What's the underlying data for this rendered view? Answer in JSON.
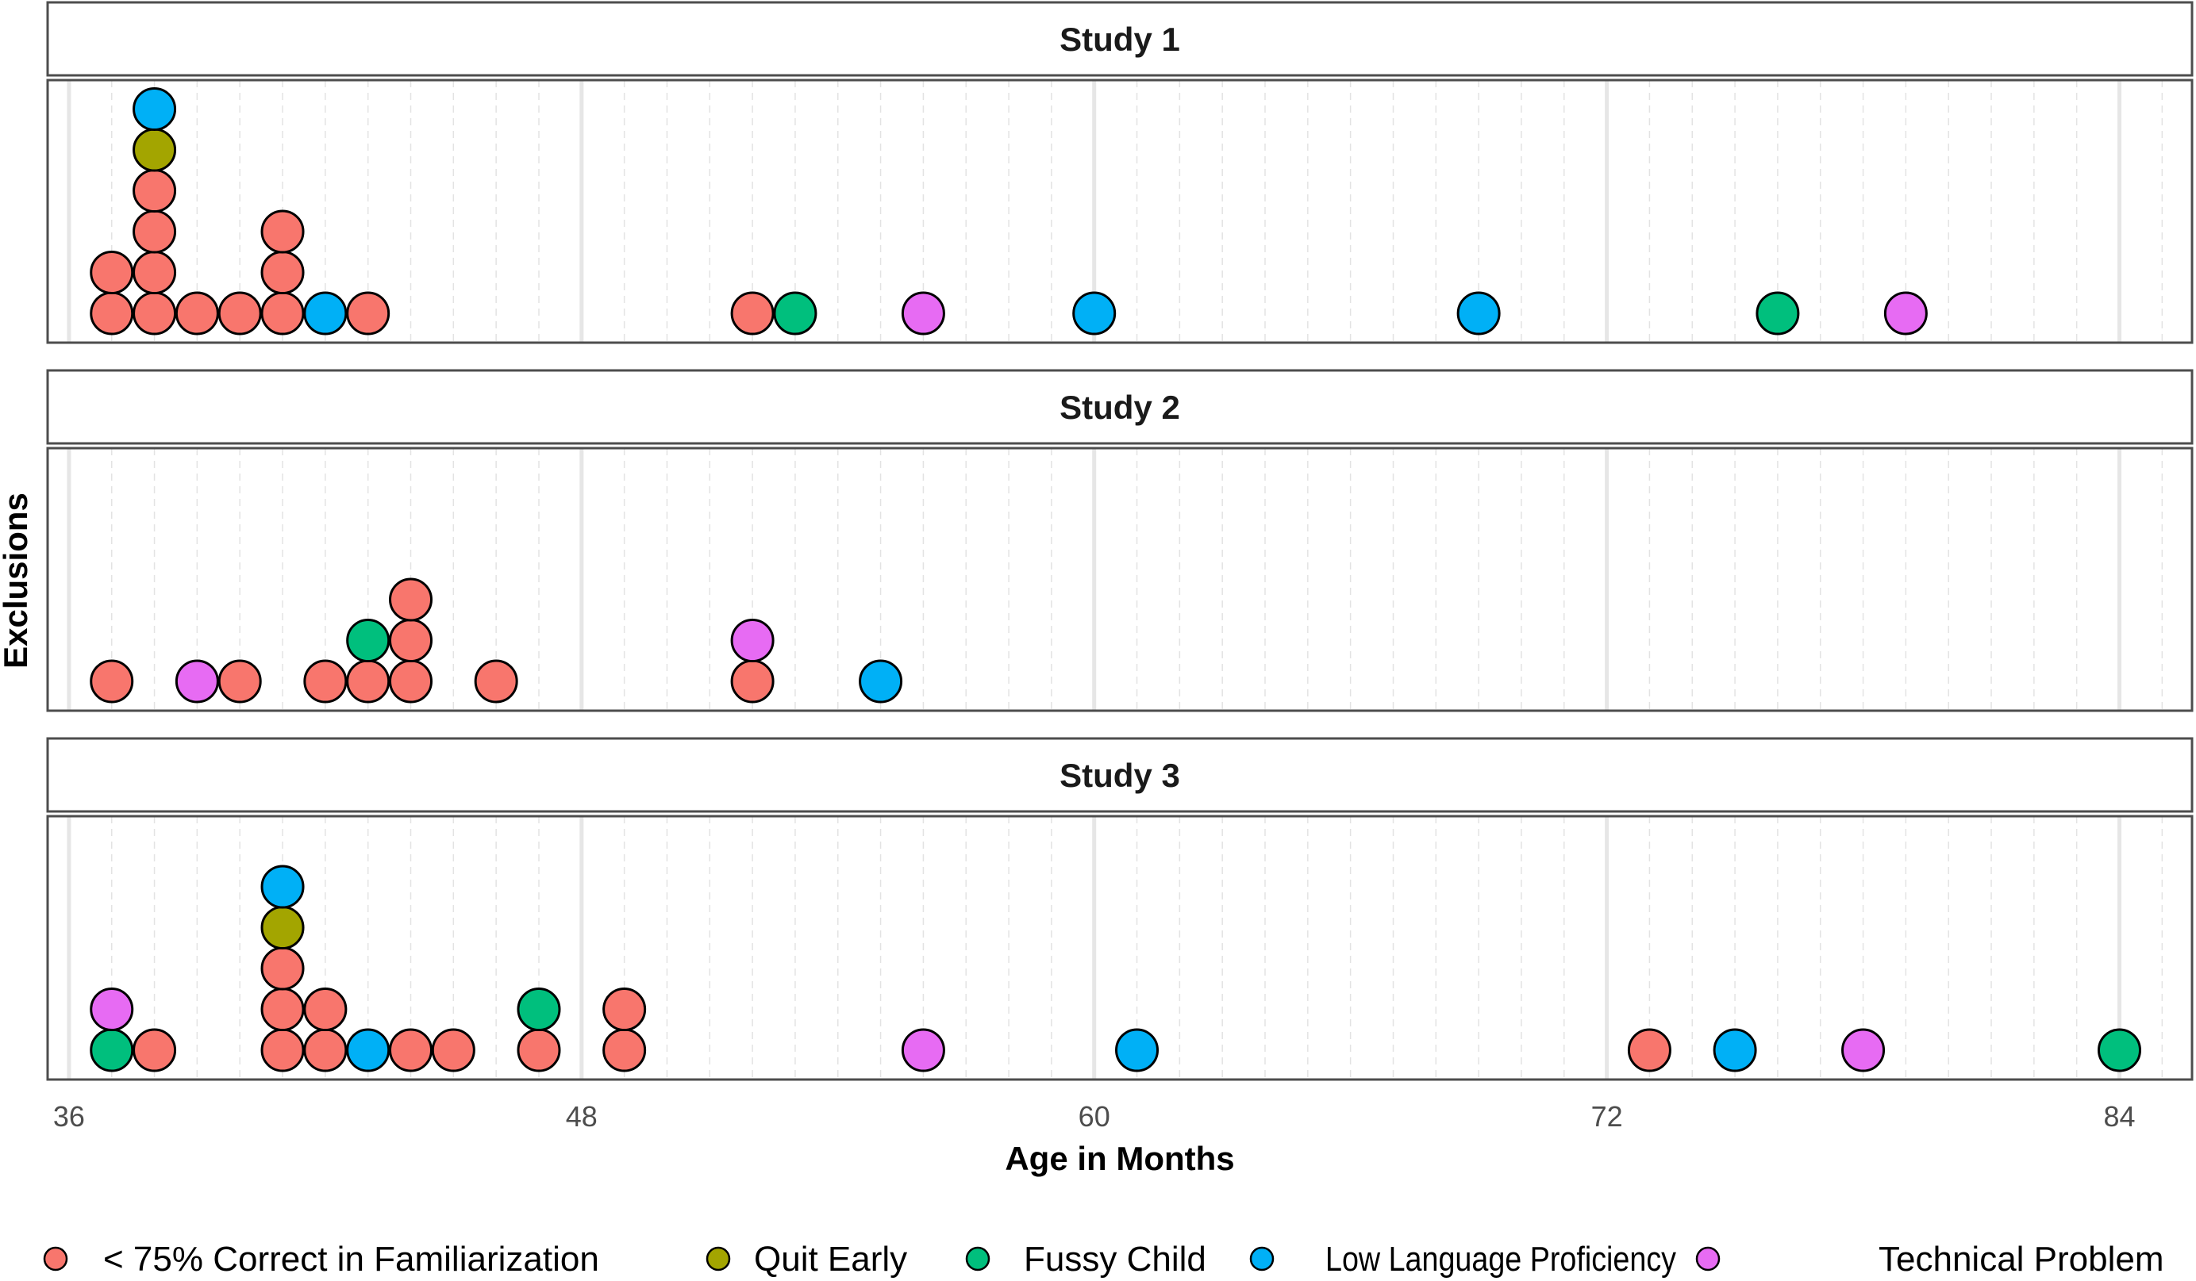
{
  "chart_data": {
    "type": "dotplot",
    "xlabel": "Age in Months",
    "ylabel": "Exclusions",
    "xlim": [
      35.5,
      85.7
    ],
    "x_ticks": [
      36,
      48,
      60,
      72,
      84
    ],
    "grid": "major solid, minor dashed every month",
    "legend_position": "bottom",
    "categories": [
      {
        "key": "fam",
        "label": "< 75% Correct in Familiarization",
        "color": "#F8766D"
      },
      {
        "key": "quit",
        "label": "Quit Early",
        "color": "#A3A500"
      },
      {
        "key": "fussy",
        "label": "Fussy Child",
        "color": "#00BF7D"
      },
      {
        "key": "lang",
        "label": "Low Language Proficiency",
        "color": "#00B0F6"
      },
      {
        "key": "tech",
        "label": "Technical Problem",
        "color": "#E76BF3"
      }
    ],
    "panels": [
      {
        "title": "Study 1",
        "stacks": [
          {
            "x": 37,
            "dots": [
              "fam",
              "fam"
            ]
          },
          {
            "x": 38,
            "dots": [
              "fam",
              "fam",
              "fam",
              "fam",
              "quit",
              "lang"
            ]
          },
          {
            "x": 39,
            "dots": [
              "fam"
            ]
          },
          {
            "x": 40,
            "dots": [
              "fam"
            ]
          },
          {
            "x": 41,
            "dots": [
              "fam",
              "fam",
              "fam"
            ]
          },
          {
            "x": 42,
            "dots": [
              "lang"
            ]
          },
          {
            "x": 43,
            "dots": [
              "fam"
            ]
          },
          {
            "x": 52,
            "dots": [
              "fam"
            ]
          },
          {
            "x": 53,
            "dots": [
              "fussy"
            ]
          },
          {
            "x": 56,
            "dots": [
              "tech"
            ]
          },
          {
            "x": 60,
            "dots": [
              "lang"
            ]
          },
          {
            "x": 69,
            "dots": [
              "lang"
            ]
          },
          {
            "x": 76,
            "dots": [
              "fussy"
            ]
          },
          {
            "x": 79,
            "dots": [
              "tech"
            ]
          }
        ]
      },
      {
        "title": "Study 2",
        "stacks": [
          {
            "x": 37,
            "dots": [
              "fam"
            ]
          },
          {
            "x": 39,
            "dots": [
              "tech"
            ]
          },
          {
            "x": 40,
            "dots": [
              "fam"
            ]
          },
          {
            "x": 42,
            "dots": [
              "fam"
            ]
          },
          {
            "x": 43,
            "dots": [
              "fam",
              "fussy"
            ]
          },
          {
            "x": 44,
            "dots": [
              "fam",
              "fam",
              "fam"
            ]
          },
          {
            "x": 46,
            "dots": [
              "fam"
            ]
          },
          {
            "x": 52,
            "dots": [
              "fam",
              "tech"
            ]
          },
          {
            "x": 55,
            "dots": [
              "lang"
            ]
          }
        ]
      },
      {
        "title": "Study 3",
        "stacks": [
          {
            "x": 37,
            "dots": [
              "fussy",
              "tech"
            ]
          },
          {
            "x": 38,
            "dots": [
              "fam"
            ]
          },
          {
            "x": 41,
            "dots": [
              "fam",
              "fam",
              "fam",
              "quit",
              "lang"
            ]
          },
          {
            "x": 42,
            "dots": [
              "fam",
              "fam"
            ]
          },
          {
            "x": 43,
            "dots": [
              "lang"
            ]
          },
          {
            "x": 44,
            "dots": [
              "fam"
            ]
          },
          {
            "x": 45,
            "dots": [
              "fam"
            ]
          },
          {
            "x": 47,
            "dots": [
              "fam",
              "fussy"
            ]
          },
          {
            "x": 49,
            "dots": [
              "fam",
              "fam"
            ]
          },
          {
            "x": 56,
            "dots": [
              "tech"
            ]
          },
          {
            "x": 61,
            "dots": [
              "lang"
            ]
          },
          {
            "x": 73,
            "dots": [
              "fam"
            ]
          },
          {
            "x": 75,
            "dots": [
              "lang"
            ]
          },
          {
            "x": 78,
            "dots": [
              "tech"
            ]
          },
          {
            "x": 84,
            "dots": [
              "fussy"
            ]
          }
        ]
      }
    ]
  }
}
